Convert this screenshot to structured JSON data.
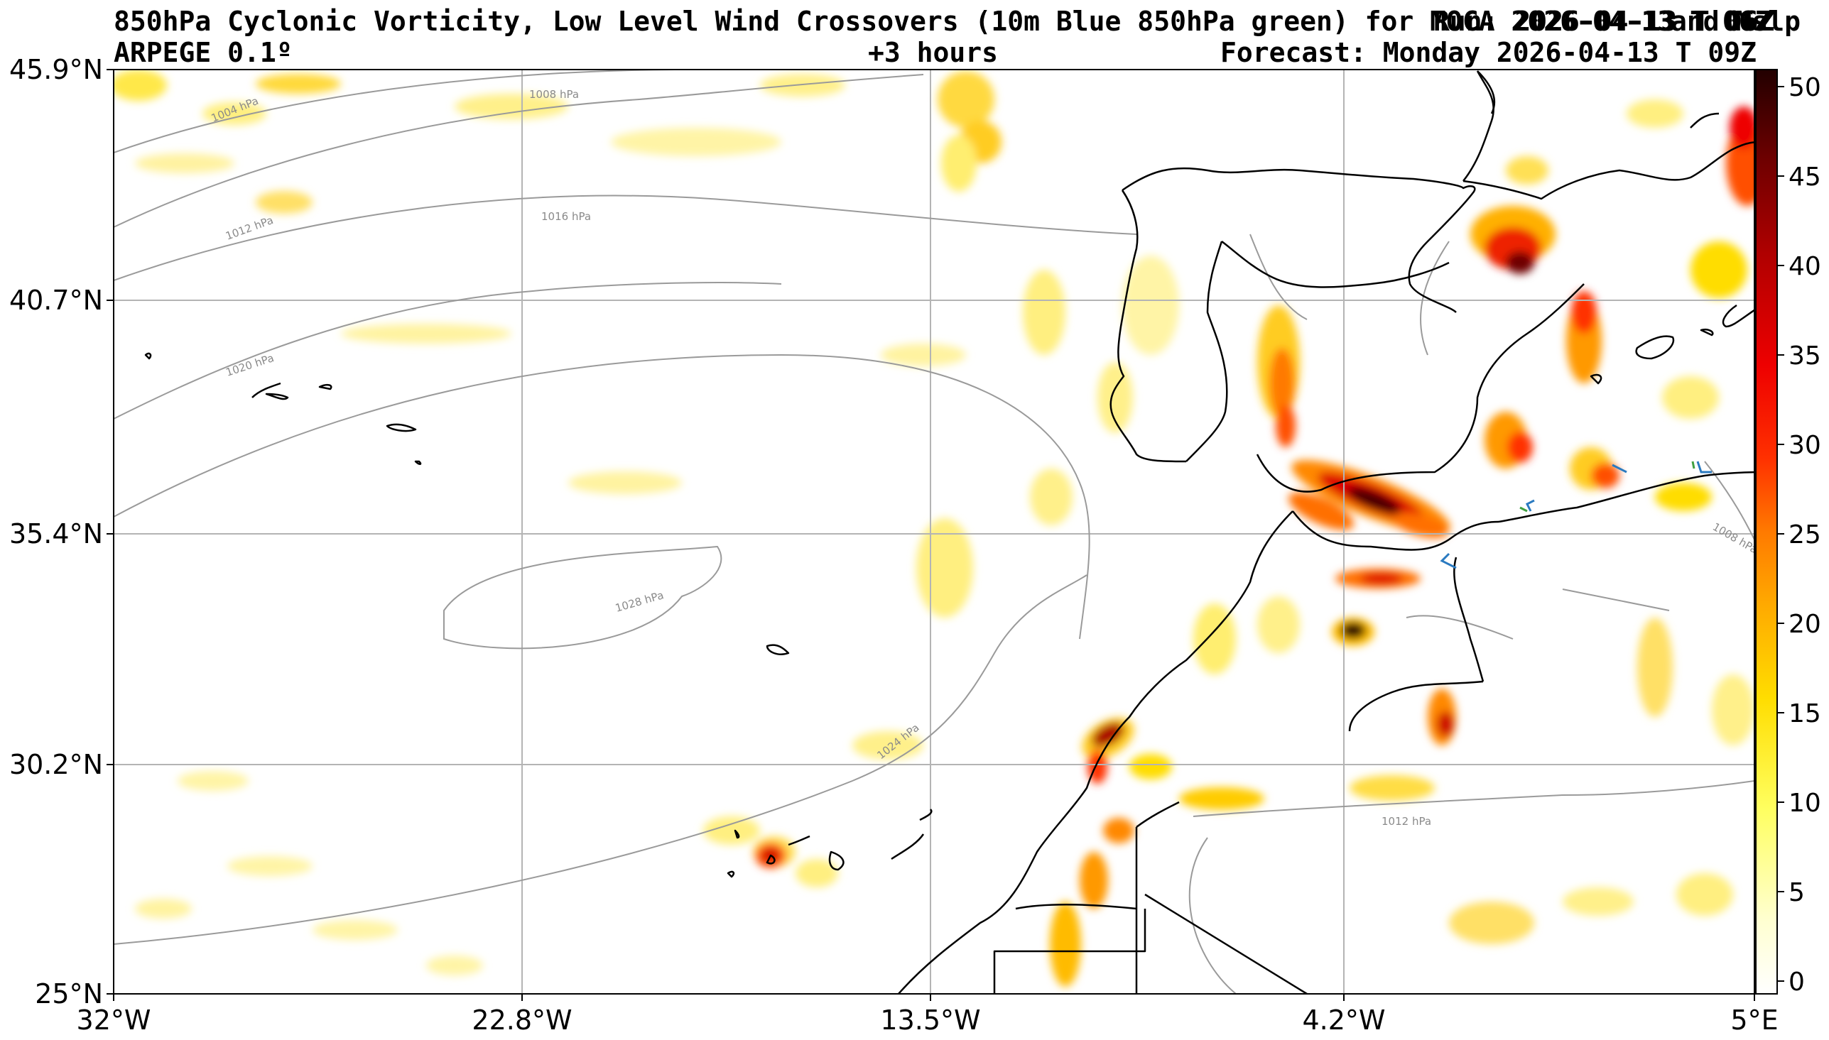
{
  "header": {
    "title": "850hPa Cyclonic Vorticity, Low Level Wind Crossovers (10m Blue 850hPa green) for MOCA 2026-04-13 T 06Z",
    "run_label": "Run: 2026-04-13 T 06Z",
    "overlap_suffix": "and Mslp",
    "model": "ARPEGE 0.1º",
    "lead_time": "+3 hours",
    "valid_time": "Forecast: Monday 2026-04-13 T 09Z"
  },
  "axes": {
    "lon_ticks": [
      "32°W",
      "22.8°W",
      "13.5°W",
      "4.2°W",
      "5°E"
    ],
    "lat_ticks": [
      "45.9°N",
      "40.7°N",
      "35.4°N",
      "30.2°N",
      "25°N"
    ]
  },
  "colorbar": {
    "ticks": [
      "50",
      "45",
      "40",
      "35",
      "30",
      "25",
      "20",
      "15",
      "10",
      "5",
      "0"
    ],
    "colors": [
      "#ffffd0",
      "#ffff80",
      "#ffee00",
      "#ffcc00",
      "#ffa000",
      "#ff7000",
      "#ff3000",
      "#ee0000",
      "#b00000",
      "#700000",
      "#2a0000"
    ]
  },
  "isobars": {
    "labels": [
      "1004 hPa",
      "1008 hPa",
      "1012 hPa",
      "1016 hPa",
      "1020 hPa",
      "1028 hPa",
      "1024 hPa",
      "1012 hPa",
      "1008 hPa"
    ]
  }
}
